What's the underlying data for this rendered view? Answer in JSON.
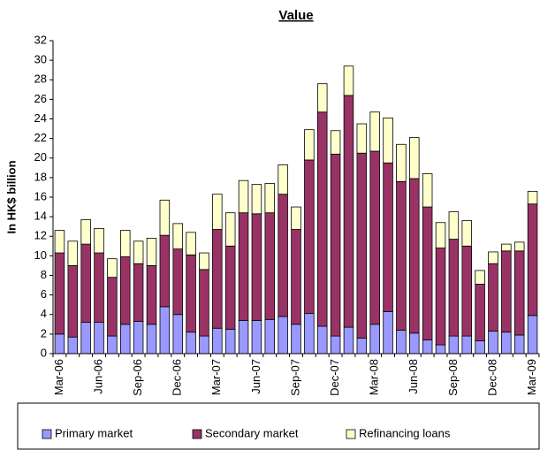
{
  "chart_data": {
    "type": "stacked_bar",
    "title": "Value",
    "y_label": "In HK$ billion",
    "categories": [
      "Mar-06",
      null,
      null,
      "Jun-06",
      null,
      null,
      "Sep-06",
      null,
      null,
      "Dec-06",
      null,
      null,
      "Mar-07",
      null,
      null,
      "Jun-07",
      null,
      null,
      "Sep-07",
      null,
      null,
      "Dec-07",
      null,
      null,
      "Mar-08",
      null,
      null,
      "Jun-08",
      null,
      null,
      "Sep-08",
      null,
      null,
      "Dec-08",
      null,
      null,
      "Mar-09"
    ],
    "series": [
      {
        "name": "Primary market",
        "color": "#9999ff",
        "values": [
          2.0,
          1.7,
          3.2,
          3.2,
          1.8,
          3.0,
          3.3,
          3.0,
          4.8,
          4.0,
          2.2,
          1.8,
          2.6,
          2.5,
          3.4,
          3.4,
          3.5,
          3.8,
          3.0,
          4.1,
          2.8,
          1.8,
          2.7,
          1.6,
          3.0,
          4.3,
          2.4,
          2.1,
          1.4,
          0.9,
          1.8,
          1.8,
          1.3,
          2.3,
          2.2,
          1.9,
          3.9
        ]
      },
      {
        "name": "Secondary market",
        "color": "#993366",
        "values": [
          8.3,
          7.3,
          8.0,
          7.1,
          6.0,
          6.9,
          5.9,
          6.0,
          7.3,
          6.7,
          7.9,
          6.8,
          10.1,
          8.5,
          11.0,
          10.9,
          10.9,
          12.5,
          9.7,
          15.7,
          21.9,
          18.6,
          23.7,
          18.9,
          17.7,
          15.2,
          15.2,
          15.8,
          13.6,
          9.9,
          9.9,
          9.2,
          5.8,
          6.9,
          8.3,
          8.6,
          11.4
        ]
      },
      {
        "name": "Refinancing loans",
        "color": "#ffffcc",
        "values": [
          2.3,
          2.5,
          2.5,
          2.5,
          1.9,
          2.7,
          2.3,
          2.8,
          3.6,
          2.6,
          2.3,
          1.7,
          3.6,
          3.4,
          3.3,
          3.0,
          3.0,
          3.0,
          2.3,
          3.1,
          2.9,
          2.4,
          3.0,
          3.0,
          4.0,
          4.6,
          3.8,
          4.2,
          3.4,
          2.6,
          2.8,
          2.6,
          1.4,
          1.2,
          0.7,
          0.9,
          1.3
        ]
      }
    ],
    "ylim": [
      0,
      32
    ],
    "yticks": [
      0,
      2,
      4,
      6,
      8,
      10,
      12,
      14,
      16,
      18,
      20,
      22,
      24,
      26,
      28,
      30,
      32
    ],
    "legend": "bottom"
  }
}
